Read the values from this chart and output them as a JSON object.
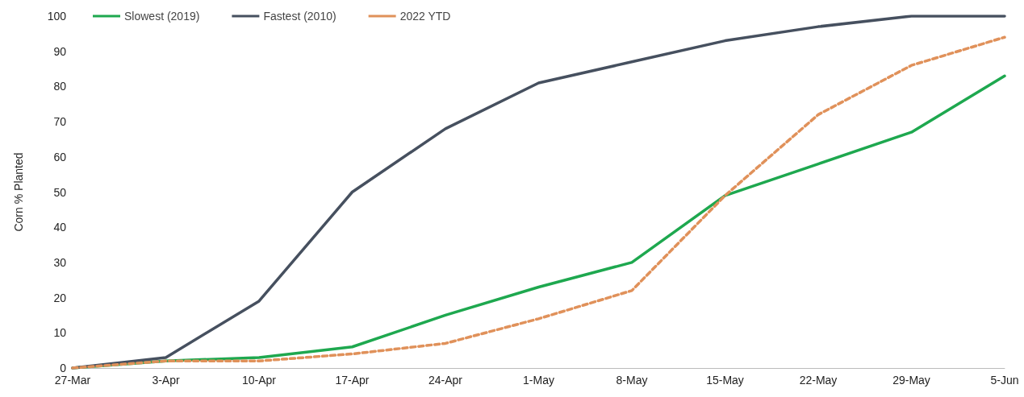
{
  "chart_data": {
    "type": "line",
    "ylabel": "Corn % Planted",
    "categories": [
      "27-Mar",
      "3-Apr",
      "10-Apr",
      "17-Apr",
      "24-Apr",
      "1-May",
      "8-May",
      "15-May",
      "22-May",
      "29-May",
      "5-Jun"
    ],
    "series": [
      {
        "name": "Slowest (2019)",
        "color": "#1ea84f",
        "values": [
          0,
          2,
          3,
          6,
          15,
          23,
          30,
          49,
          58,
          67,
          83
        ]
      },
      {
        "name": "Fastest (2010)",
        "color": "#46505f",
        "values": [
          0,
          3,
          19,
          50,
          68,
          81,
          87,
          93,
          97,
          100,
          100
        ]
      },
      {
        "name": "2022 YTD",
        "color": "#e0915a",
        "line_style": "dashed",
        "values": [
          0,
          2,
          2,
          4,
          7,
          14,
          22,
          49,
          72,
          86,
          94
        ]
      }
    ],
    "ylim": [
      0,
      100
    ],
    "yticks": [
      0,
      10,
      20,
      30,
      40,
      50,
      60,
      70,
      80,
      90,
      100
    ],
    "grid": false,
    "legend": "top left",
    "marker": "none",
    "line_style": "solid"
  }
}
